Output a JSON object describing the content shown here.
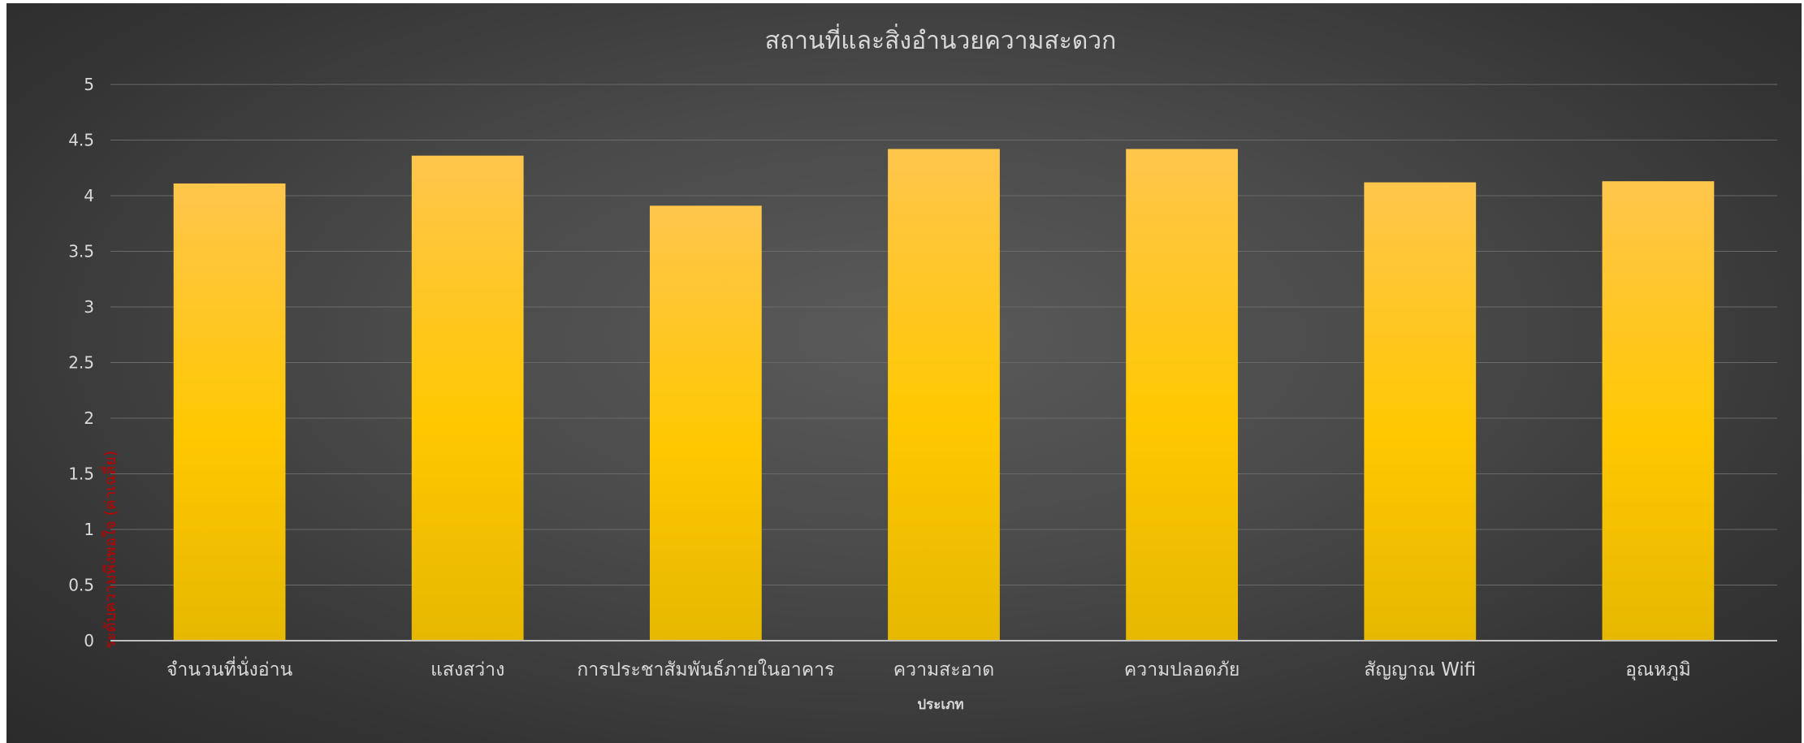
{
  "chart_data": {
    "type": "bar",
    "title": "สถานที่และสิ่งอำนวยความสะดวก",
    "xlabel": "ประเภท",
    "ylabel": "ระดับความพึงพอใจ (ค่าเฉลี่ย)",
    "categories": [
      "จำนวนที่นั่งอ่าน",
      "แสงสว่าง",
      "การประชาสัมพันธ์ภายในอาคาร",
      "ความสะอาด",
      "ความปลอดภัย",
      "สัญญาณ Wifi",
      "อุณหภูมิ"
    ],
    "values": [
      4.11,
      4.36,
      3.91,
      4.42,
      4.42,
      4.12,
      4.13
    ],
    "ylim": [
      0,
      5
    ],
    "yticks": [
      "0",
      "0.5",
      "1",
      "1.5",
      "2",
      "2.5",
      "3",
      "3.5",
      "4",
      "4.5",
      "5"
    ],
    "grid": true,
    "legend": "none"
  },
  "colors": {
    "bar_top": "#ffc64d",
    "bar_mid": "#ffc800",
    "bar_bottom": "#e6b800",
    "text": "#d9d9d9",
    "grid": "#6a6a6a",
    "axis": "#bfbfbf",
    "ylabel": "#c00000"
  }
}
